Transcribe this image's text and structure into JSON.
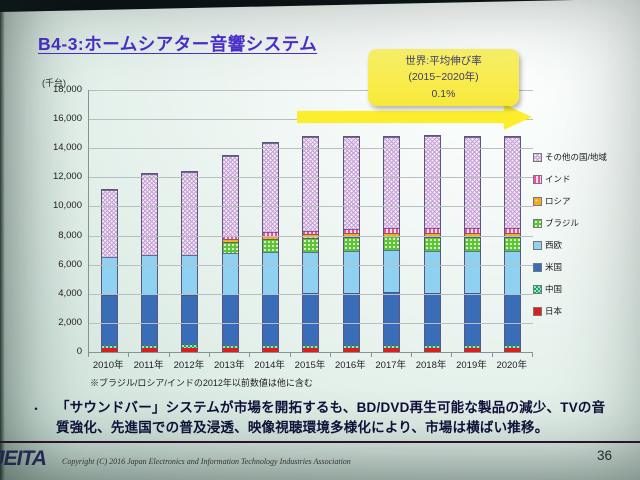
{
  "slide": {
    "title": "B4-3:ホームシアター音響システム",
    "callout": {
      "line1": "世界:平均伸び率",
      "line2": "(2015~2020年)",
      "line3": "0.1%"
    },
    "note": "※ブラジル/ロシア/インドの2012年以前数値は他に含む",
    "bullet_marker": "・",
    "bullet_text": "「サウンドバー」システムが市場を開拓するも、BD/DVD再生可能な製品の減少、TVの音質強化、先進国での普及浸透、映像視聴環境多様化により、市場は横ばい推移。",
    "footer": {
      "logo": "JEITA",
      "copyright": "Copyright (C) 2016 Japan Electronics and Information Technology Industries Association",
      "page": "36"
    }
  },
  "chart_data": {
    "type": "bar",
    "stacked": true,
    "unit_label": "(千台)",
    "categories": [
      "2010年",
      "2011年",
      "2012年",
      "2013年",
      "2014年",
      "2015年",
      "2016年",
      "2017年",
      "2018年",
      "2019年",
      "2020年"
    ],
    "series": [
      {
        "key": "japan",
        "name": "日本",
        "color": "#dc1e1e",
        "pattern": "solid",
        "values": [
          300,
          300,
          250,
          250,
          250,
          250,
          250,
          250,
          250,
          250,
          250
        ]
      },
      {
        "key": "china",
        "name": "中国",
        "color": "#2fae6e",
        "pattern": "checker",
        "values": [
          150,
          200,
          300,
          250,
          250,
          250,
          250,
          250,
          250,
          250,
          250
        ]
      },
      {
        "key": "usa",
        "name": "米国",
        "color": "#3a6db8",
        "pattern": "solid",
        "values": [
          3500,
          3500,
          3400,
          3500,
          3500,
          3550,
          3550,
          3600,
          3550,
          3550,
          3500
        ]
      },
      {
        "key": "weu",
        "name": "西欧",
        "color": "#8ed1f0",
        "pattern": "solid",
        "values": [
          2600,
          2700,
          2700,
          2800,
          2850,
          2850,
          2900,
          2900,
          2900,
          2900,
          2950
        ]
      },
      {
        "key": "brazil",
        "name": "ブラジル",
        "color": "#5ec437",
        "pattern": "dots",
        "values": [
          0,
          0,
          0,
          750,
          900,
          950,
          950,
          950,
          950,
          950,
          950
        ]
      },
      {
        "key": "russia",
        "name": "ロシア",
        "color": "#f5a81e",
        "pattern": "dots",
        "values": [
          0,
          0,
          0,
          200,
          250,
          250,
          250,
          250,
          300,
          300,
          300
        ]
      },
      {
        "key": "india",
        "name": "インド",
        "color": "#ee4da6",
        "pattern": "vstripes",
        "values": [
          0,
          0,
          0,
          250,
          250,
          250,
          300,
          300,
          300,
          300,
          300
        ]
      },
      {
        "key": "other",
        "name": "その他の国/地域",
        "color": "#d9c3e6",
        "pattern": "crosshatch",
        "values": [
          4550,
          5550,
          5700,
          5500,
          6100,
          6400,
          6350,
          6300,
          6350,
          6300,
          6300
        ]
      }
    ],
    "totals": [
      11100,
      12250,
      12350,
      13500,
      14350,
      14750,
      14800,
      14800,
      14850,
      14800,
      14800
    ],
    "ylim": [
      0,
      18000
    ],
    "ytick_step": 2000,
    "ytick_labels": [
      "0",
      "2,000",
      "4,000",
      "6,000",
      "8,000",
      "10,000",
      "12,000",
      "14,000",
      "16,000",
      "18,000"
    ],
    "grid": true,
    "legend_position": "right",
    "legend_order_top_to_bottom": [
      "その他の国/地域",
      "インド",
      "ロシア",
      "ブラジル",
      "西欧",
      "米国",
      "中国",
      "日本"
    ]
  }
}
